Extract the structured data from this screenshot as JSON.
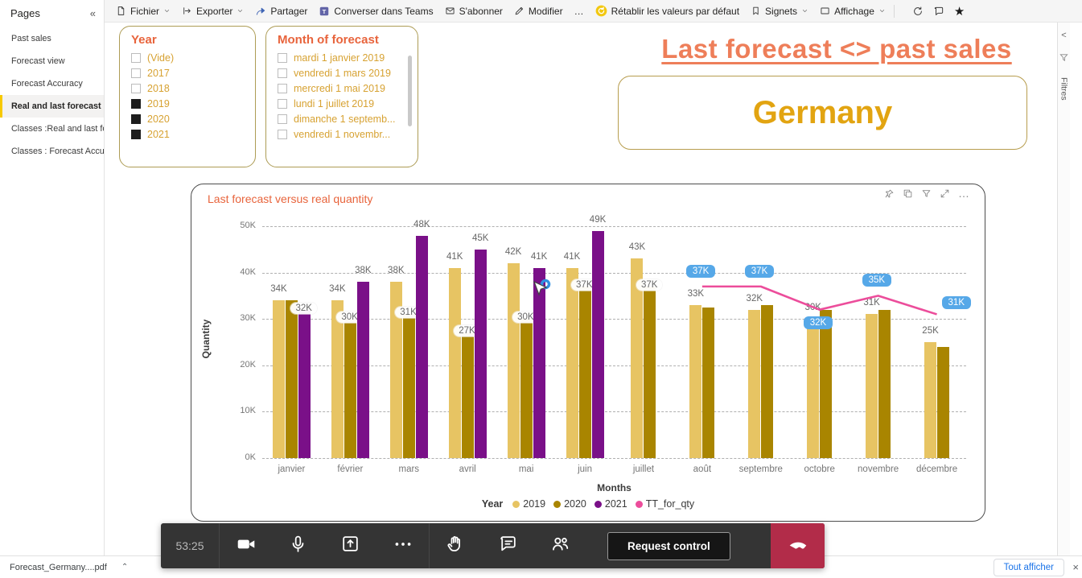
{
  "sidebar": {
    "title": "Pages",
    "collapse_icon": "chevrons-left",
    "items": [
      {
        "label": "Past sales",
        "selected": false
      },
      {
        "label": "Forecast view",
        "selected": false
      },
      {
        "label": "Forecast Accuracy",
        "selected": false
      },
      {
        "label": "Real and last forecast",
        "selected": true
      },
      {
        "label": "Classes :Real and last fo...",
        "selected": false
      },
      {
        "label": "Classes : Forecast Accur...",
        "selected": false
      }
    ]
  },
  "toolbar": {
    "left": [
      {
        "label": "Fichier",
        "icon": "file-icon",
        "chevron": true
      },
      {
        "label": "Exporter",
        "icon": "export-icon",
        "chevron": true
      },
      {
        "label": "Partager",
        "icon": "share-icon",
        "chevron": false
      },
      {
        "label": "Converser dans Teams",
        "icon": "teams-icon",
        "chevron": false
      },
      {
        "label": "S'abonner",
        "icon": "mail-icon",
        "chevron": false
      },
      {
        "label": "Modifier",
        "icon": "pencil-icon",
        "chevron": false
      },
      {
        "label": "…",
        "icon": null,
        "chevron": false
      }
    ],
    "right": [
      {
        "label": "Rétablir les valeurs par défaut",
        "icon": "reset-icon",
        "chevron": false
      },
      {
        "label": "Signets",
        "icon": "bookmark-icon",
        "chevron": true
      },
      {
        "label": "Affichage",
        "icon": "display-icon",
        "chevron": true
      }
    ],
    "right_icons": [
      "refresh-icon",
      "comment-icon",
      "star-icon"
    ]
  },
  "slicers": {
    "year": {
      "title": "Year",
      "items": [
        {
          "label": "(Vide)",
          "checked": false
        },
        {
          "label": "2017",
          "checked": false
        },
        {
          "label": "2018",
          "checked": false
        },
        {
          "label": "2019",
          "checked": true
        },
        {
          "label": "2020",
          "checked": true
        },
        {
          "label": "2021",
          "checked": true
        }
      ]
    },
    "month": {
      "title": "Month of forecast",
      "items": [
        {
          "label": "mardi 1 janvier 2019",
          "checked": false
        },
        {
          "label": "vendredi 1 mars 2019",
          "checked": false
        },
        {
          "label": "mercredi 1 mai 2019",
          "checked": false
        },
        {
          "label": "lundi 1 juillet 2019",
          "checked": false
        },
        {
          "label": "dimanche 1 septemb...",
          "checked": false
        },
        {
          "label": "vendredi 1 novembr...",
          "checked": false
        }
      ]
    }
  },
  "page": {
    "title": "Last forecast <> past sales",
    "country": "Germany",
    "title_color": "#ee7e59",
    "country_color": "#e2a411"
  },
  "filters_rail": {
    "label": "Filtres",
    "chevron": "<"
  },
  "chart_card": {
    "title": "Last forecast versus real quantity",
    "hover_icons": [
      "pin-icon",
      "copy-icon",
      "filter-icon",
      "focus-icon",
      "more-icon"
    ]
  },
  "chart_data": {
    "type": "bar",
    "title": "Last forecast versus real quantity",
    "xlabel": "Months",
    "ylabel": "Quantity",
    "ylim": [
      0,
      50000
    ],
    "yticks": [
      "0K",
      "10K",
      "20K",
      "30K",
      "40K",
      "50K"
    ],
    "grid": "dashed-horizontal",
    "legend_position": "bottom",
    "legend_title": "Year",
    "categories": [
      "janvier",
      "février",
      "mars",
      "avril",
      "mai",
      "juin",
      "juillet",
      "août",
      "septembre",
      "octobre",
      "novembre",
      "décembre"
    ],
    "series": [
      {
        "name": "2019",
        "color": "#e7c463",
        "values": [
          34,
          34,
          38,
          41,
          42,
          41,
          43,
          33,
          32,
          30,
          31,
          25
        ],
        "labels": [
          "34K",
          "34K",
          "38K",
          "41K",
          "42K",
          "41K",
          "43K",
          "33K",
          "32K",
          "30K",
          "31K",
          "25K"
        ],
        "boxed": [
          false,
          false,
          false,
          false,
          false,
          false,
          false,
          false,
          false,
          false,
          false,
          false
        ]
      },
      {
        "name": "2020",
        "color": "#a98500",
        "values": [
          34,
          30,
          31,
          27,
          30,
          37,
          37,
          32.5,
          33,
          32,
          32,
          24
        ],
        "labels": [
          null,
          "30K",
          "31K",
          "27K",
          "30K",
          "37K",
          "37K",
          null,
          null,
          null,
          null,
          null
        ],
        "boxed": [
          false,
          true,
          true,
          true,
          true,
          true,
          true,
          false,
          false,
          false,
          false,
          false
        ]
      },
      {
        "name": "2021",
        "color": "#7a1088",
        "values": [
          32,
          38,
          48,
          45,
          41,
          49,
          null,
          null,
          null,
          null,
          null,
          null
        ],
        "labels": [
          "32K",
          "38K",
          "48K",
          "45K",
          "41K",
          "49K",
          null,
          null,
          null,
          null,
          null,
          null
        ],
        "boxed": [
          true,
          false,
          false,
          false,
          false,
          false,
          false,
          false,
          false,
          false,
          false,
          false
        ]
      }
    ],
    "line_series": {
      "name": "TT_for_qty",
      "color": "#ec4d9b",
      "label_bg": "#56a8e8",
      "values": [
        null,
        null,
        null,
        null,
        null,
        null,
        null,
        37,
        37,
        32,
        35,
        31
      ],
      "labels": [
        null,
        null,
        null,
        null,
        null,
        null,
        null,
        "37K",
        "37K",
        "32K",
        "35K",
        "31K"
      ],
      "label_pos": [
        null,
        null,
        null,
        null,
        null,
        null,
        null,
        "above",
        "above",
        "below",
        "above",
        "above-right"
      ]
    },
    "units": "thousands"
  },
  "teams_bar": {
    "timer": "53:25",
    "group1_icons": [
      "camera-icon",
      "mic-icon",
      "present-icon",
      "more-icon"
    ],
    "group2_icons": [
      "raise-hand-icon",
      "chat-icon",
      "people-icon"
    ],
    "request_control_label": "Request control",
    "hangup_icon": "hangup-icon",
    "bar_color": "#343434",
    "hangup_color": "#b22c49"
  },
  "download_bar": {
    "file_label": "Forecast_Germany....pdf",
    "show_all_label": "Tout afficher",
    "close_icon": "×"
  }
}
